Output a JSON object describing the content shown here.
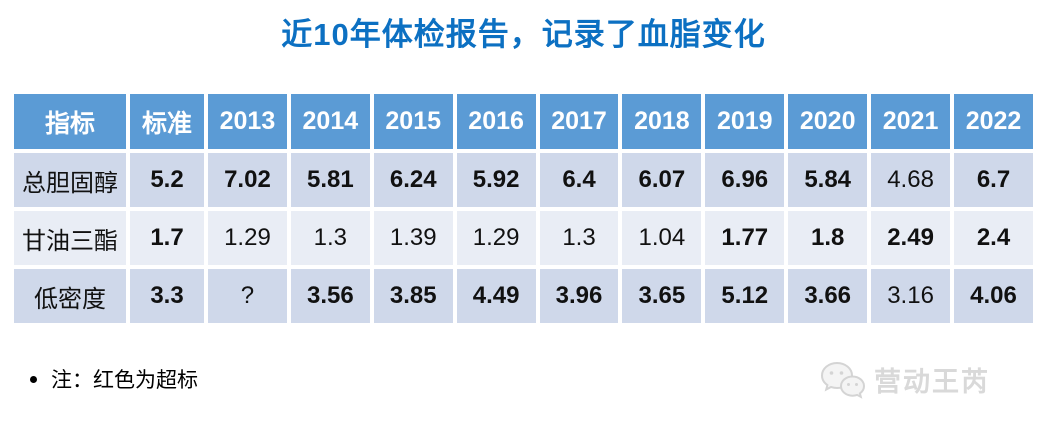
{
  "title": "近10年体检报告，记录了血脂变化",
  "note": {
    "text": "注：红色为超标"
  },
  "watermark": {
    "text": "营动王芮",
    "icon": "wechat-bubbles-icon"
  },
  "colors": {
    "title_blue": "#0c70c2",
    "header_bg": "#5b9bd5",
    "row_dark": "#cfd8ea",
    "row_light": "#e9edf5",
    "standard_green": "#538135",
    "over_red": "#ff0000",
    "normal_black": "#1a1a1a",
    "watermark_gray": "#d9d9d9"
  },
  "chart_data": {
    "type": "table",
    "title": "近10年体检报告，记录了血脂变化",
    "columns": [
      "指标",
      "标准",
      "2013",
      "2014",
      "2015",
      "2016",
      "2017",
      "2018",
      "2019",
      "2020",
      "2021",
      "2022"
    ],
    "rows": [
      {
        "indicator": "总胆固醇",
        "standard": "5.2",
        "values": [
          {
            "v": "7.02",
            "status": "over"
          },
          {
            "v": "5.81",
            "status": "over"
          },
          {
            "v": "6.24",
            "status": "over"
          },
          {
            "v": "5.92",
            "status": "over"
          },
          {
            "v": "6.4",
            "status": "over"
          },
          {
            "v": "6.07",
            "status": "over"
          },
          {
            "v": "6.96",
            "status": "over"
          },
          {
            "v": "5.84",
            "status": "over"
          },
          {
            "v": "4.68",
            "status": "normal"
          },
          {
            "v": "6.7",
            "status": "over"
          }
        ]
      },
      {
        "indicator": "甘油三酯",
        "standard": "1.7",
        "values": [
          {
            "v": "1.29",
            "status": "normal"
          },
          {
            "v": "1.3",
            "status": "normal"
          },
          {
            "v": "1.39",
            "status": "normal"
          },
          {
            "v": "1.29",
            "status": "normal"
          },
          {
            "v": "1.3",
            "status": "normal"
          },
          {
            "v": "1.04",
            "status": "normal"
          },
          {
            "v": "1.77",
            "status": "over"
          },
          {
            "v": "1.8",
            "status": "over"
          },
          {
            "v": "2.49",
            "status": "over"
          },
          {
            "v": "2.4",
            "status": "over"
          }
        ]
      },
      {
        "indicator": "低密度",
        "standard": "3.3",
        "values": [
          {
            "v": "?",
            "status": "normal"
          },
          {
            "v": "3.56",
            "status": "over"
          },
          {
            "v": "3.85",
            "status": "over"
          },
          {
            "v": "4.49",
            "status": "over"
          },
          {
            "v": "3.96",
            "status": "over"
          },
          {
            "v": "3.65",
            "status": "over"
          },
          {
            "v": "5.12",
            "status": "over"
          },
          {
            "v": "3.66",
            "status": "over"
          },
          {
            "v": "3.16",
            "status": "normal"
          },
          {
            "v": "4.06",
            "status": "over"
          }
        ]
      }
    ]
  }
}
